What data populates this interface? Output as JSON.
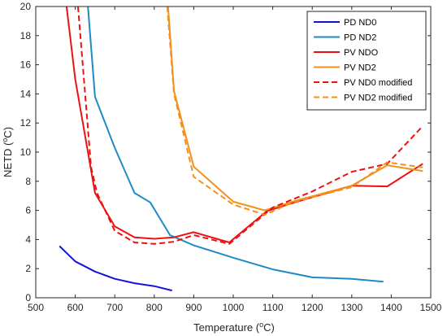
{
  "chart_data": {
    "type": "line",
    "xlabel": "Temperature (",
    "xlabel_sup": "o",
    "xlabel_tail": "C)",
    "ylabel": "NETD (",
    "ylabel_sup": "o",
    "ylabel_tail": "C)",
    "xlim": [
      500,
      1500
    ],
    "ylim": [
      0,
      20
    ],
    "xticks": [
      500,
      600,
      700,
      800,
      900,
      1000,
      1100,
      1200,
      1300,
      1400,
      1500
    ],
    "yticks": [
      0,
      2,
      4,
      6,
      8,
      10,
      12,
      14,
      16,
      18,
      20
    ],
    "grid": false,
    "legend_position": "top-right",
    "series": [
      {
        "name": "PD ND0",
        "color": "#1414d8",
        "dash": "solid",
        "x": [
          560,
          600,
          650,
          700,
          750,
          800,
          845
        ],
        "y": [
          3.55,
          2.5,
          1.8,
          1.3,
          1.0,
          0.8,
          0.5
        ]
      },
      {
        "name": "PD ND2",
        "color": "#1f8bc6",
        "dash": "solid",
        "x": [
          632,
          650,
          700,
          750,
          790,
          840,
          900,
          1000,
          1100,
          1200,
          1300,
          1380
        ],
        "y": [
          20,
          13.8,
          10.3,
          7.2,
          6.55,
          4.3,
          3.6,
          2.75,
          1.95,
          1.4,
          1.3,
          1.1
        ]
      },
      {
        "name": "PV NDO",
        "color": "#ee1111",
        "dash": "solid",
        "x": [
          578,
          600,
          650,
          700,
          750,
          800,
          850,
          900,
          990,
          1085,
          1150,
          1300,
          1390,
          1480
        ],
        "y": [
          20,
          15.0,
          7.2,
          4.9,
          4.15,
          4.05,
          4.15,
          4.5,
          3.8,
          5.95,
          6.5,
          7.7,
          7.65,
          9.2
        ]
      },
      {
        "name": "PV ND2",
        "color": "#f4901a",
        "dash": "solid",
        "x": [
          835,
          850,
          900,
          1000,
          1080,
          1150,
          1300,
          1390,
          1480
        ],
        "y": [
          20,
          14.2,
          9.0,
          6.6,
          6.0,
          6.6,
          7.7,
          9.1,
          8.7
        ]
      },
      {
        "name": "PV ND0 modified",
        "color": "#ee1111",
        "dash": "dashed",
        "x": [
          607,
          640,
          655,
          700,
          750,
          800,
          850,
          900,
          990,
          1100,
          1200,
          1300,
          1390,
          1480
        ],
        "y": [
          20,
          9.0,
          7.2,
          4.6,
          3.8,
          3.7,
          3.85,
          4.3,
          3.7,
          6.2,
          7.3,
          8.65,
          9.2,
          11.8
        ]
      },
      {
        "name": "PV ND2 modified",
        "color": "#f4901a",
        "dash": "dashed",
        "x": [
          833,
          850,
          900,
          1000,
          1080,
          1150,
          1300,
          1390,
          1480
        ],
        "y": [
          20,
          14.0,
          8.3,
          6.4,
          5.7,
          6.55,
          7.6,
          9.3,
          8.95
        ]
      }
    ]
  }
}
